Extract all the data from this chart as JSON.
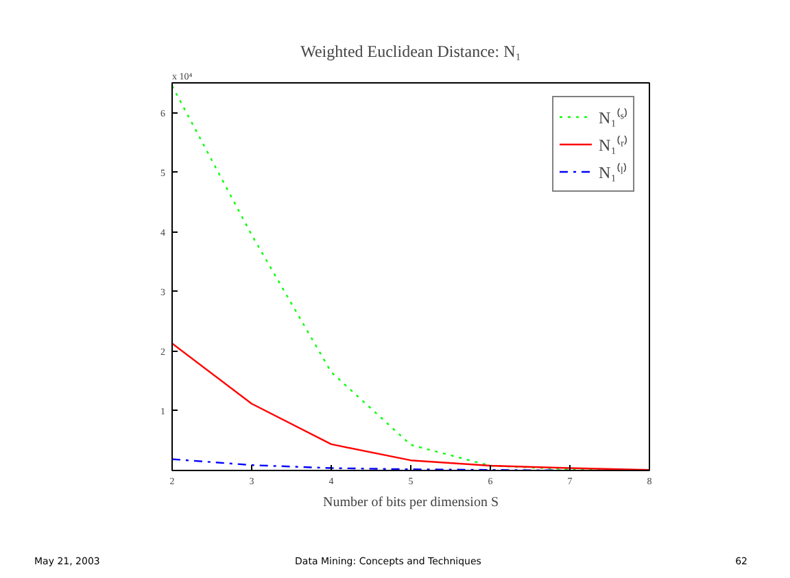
{
  "chart_data": {
    "type": "line",
    "title": "Weighted Euclidean Distance: N₁",
    "xlabel": "Number of bits per dimension S",
    "x": [
      2,
      3,
      4,
      5,
      6,
      7,
      8
    ],
    "series": [
      {
        "name": "N₁⁽ˢ⁾",
        "color": "#00ff00",
        "line_style": "dotted",
        "values": [
          6.45,
          3.95,
          1.65,
          0.43,
          0.08,
          0.02,
          0.0
        ]
      },
      {
        "name": "N₁⁽ʳ⁾",
        "color": "#ff0000",
        "line_style": "solid",
        "values": [
          2.13,
          1.12,
          0.44,
          0.17,
          0.08,
          0.04,
          0.01
        ]
      },
      {
        "name": "N₁⁽ˡ⁾",
        "color": "#0000ff",
        "line_style": "dashdot",
        "values": [
          0.19,
          0.09,
          0.04,
          0.02,
          0.01,
          0.0,
          null
        ]
      }
    ],
    "xlim": [
      2,
      8
    ],
    "ylim": [
      0,
      6.5
    ],
    "xticks": [
      2,
      3,
      4,
      5,
      6,
      7,
      8
    ],
    "yticks": [
      1,
      2,
      3,
      4,
      5,
      6
    ],
    "grid": false,
    "legend": "top right",
    "marker": "none",
    "annotations": [
      "x 10⁴",
      "May 21, 2003",
      "Data Mining: Concepts and Techniques",
      "62"
    ]
  }
}
